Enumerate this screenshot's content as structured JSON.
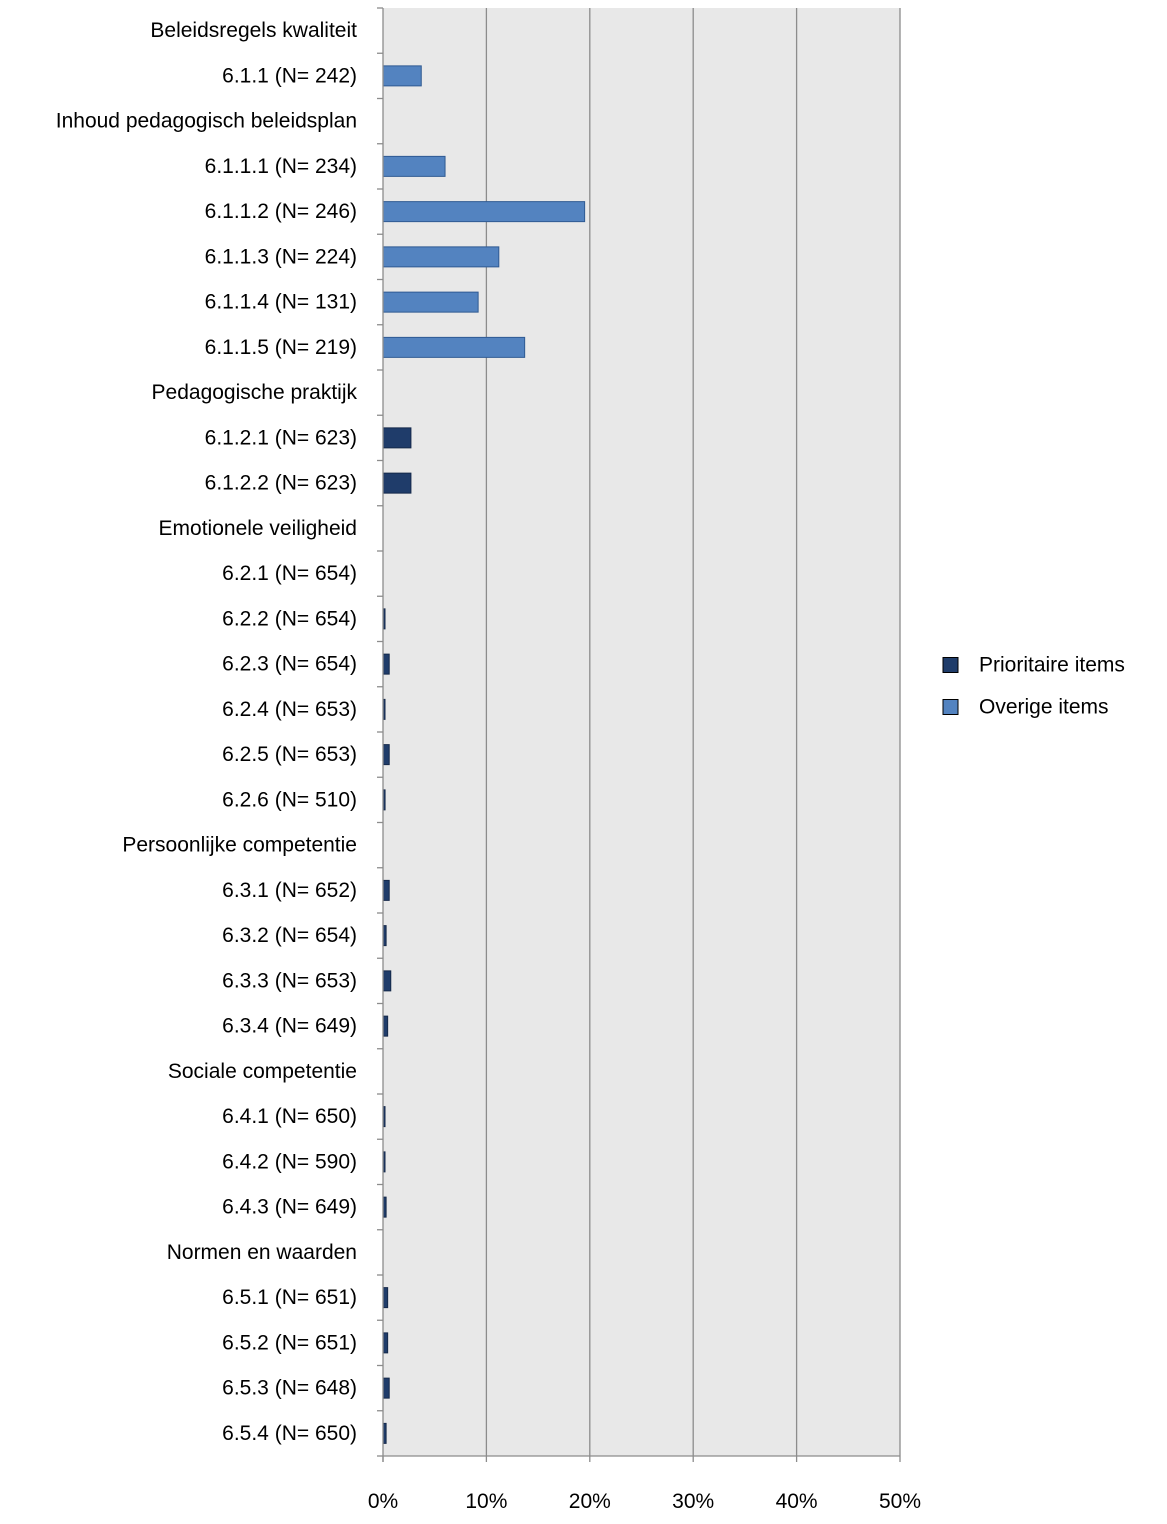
{
  "chart_data": {
    "type": "bar",
    "orientation": "horizontal",
    "xlim": [
      0,
      50
    ],
    "xticks": [
      "0%",
      "10%",
      "20%",
      "30%",
      "40%",
      "50%"
    ],
    "xtick_values": [
      0,
      10,
      20,
      30,
      40,
      50
    ],
    "grid": "vertical",
    "legend_position": "right",
    "series": [
      {
        "name": "Prioritaire items",
        "color": "#1f3c6a"
      },
      {
        "name": "Overige items",
        "color": "#5383c0"
      }
    ],
    "categories": [
      {
        "label": "Beleidsregels kwaliteit",
        "value": null,
        "series": null
      },
      {
        "label": "6.1.1 (N= 242)",
        "value": 3.7,
        "series": 1
      },
      {
        "label": "Inhoud pedagogisch beleidsplan",
        "value": null,
        "series": null
      },
      {
        "label": "6.1.1.1 (N= 234)",
        "value": 6.0,
        "series": 1
      },
      {
        "label": "6.1.1.2 (N= 246)",
        "value": 19.5,
        "series": 1
      },
      {
        "label": "6.1.1.3 (N= 224)",
        "value": 11.2,
        "series": 1
      },
      {
        "label": "6.1.1.4 (N= 131)",
        "value": 9.2,
        "series": 1
      },
      {
        "label": "6.1.1.5 (N= 219)",
        "value": 13.7,
        "series": 1
      },
      {
        "label": "Pedagogische praktijk",
        "value": null,
        "series": null
      },
      {
        "label": "6.1.2.1 (N= 623)",
        "value": 2.7,
        "series": 0
      },
      {
        "label": "6.1.2.2 (N= 623)",
        "value": 2.7,
        "series": 0
      },
      {
        "label": "Emotionele veiligheid",
        "value": null,
        "series": null
      },
      {
        "label": "6.2.1 (N= 654)",
        "value": 0,
        "series": 0
      },
      {
        "label": "6.2.2 (N= 654)",
        "value": 0.15,
        "series": 0
      },
      {
        "label": "6.2.3 (N= 654)",
        "value": 0.6,
        "series": 0
      },
      {
        "label": "6.2.4 (N= 653)",
        "value": 0.15,
        "series": 0
      },
      {
        "label": "6.2.5 (N= 653)",
        "value": 0.6,
        "series": 0
      },
      {
        "label": "6.2.6 (N= 510)",
        "value": 0.2,
        "series": 0
      },
      {
        "label": "Persoonlijke competentie",
        "value": null,
        "series": null
      },
      {
        "label": "6.3.1 (N= 652)",
        "value": 0.6,
        "series": 0
      },
      {
        "label": "6.3.2 (N= 654)",
        "value": 0.3,
        "series": 0
      },
      {
        "label": "6.3.3 (N= 653)",
        "value": 0.75,
        "series": 0
      },
      {
        "label": "6.3.4 (N= 649)",
        "value": 0.45,
        "series": 0
      },
      {
        "label": "Sociale competentie",
        "value": null,
        "series": null
      },
      {
        "label": "6.4.1 (N= 650)",
        "value": 0.15,
        "series": 0
      },
      {
        "label": "6.4.2 (N= 590)",
        "value": 0.15,
        "series": 0
      },
      {
        "label": "6.4.3 (N= 649)",
        "value": 0.3,
        "series": 0
      },
      {
        "label": "Normen en waarden",
        "value": null,
        "series": null
      },
      {
        "label": "6.5.1 (N= 651)",
        "value": 0.45,
        "series": 0
      },
      {
        "label": "6.5.2 (N= 651)",
        "value": 0.45,
        "series": 0
      },
      {
        "label": "6.5.3 (N= 648)",
        "value": 0.6,
        "series": 0
      },
      {
        "label": "6.5.4 (N= 650)",
        "value": 0.3,
        "series": 0
      }
    ]
  }
}
